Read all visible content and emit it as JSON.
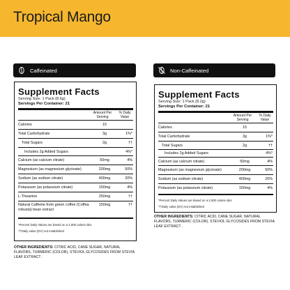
{
  "banner": {
    "title": "Tropical Mango",
    "color": "#f6b72f"
  },
  "variants": {
    "left": {
      "badge_icon": "coffee-bean-icon",
      "badge_label": "Caffeinated",
      "facts": {
        "title": "Supplement Facts",
        "serving_size": "Serving Size: 1 Pack (8.6g)",
        "servings_per_container": "Servings Per Container: 21",
        "col_amount": "Amount Per Serving",
        "col_dv": "% Daily Value",
        "rows": [
          {
            "name": "Calories",
            "amount": "15",
            "dv": ""
          },
          {
            "name": "Total Carbohydrate",
            "amount": "3g",
            "dv": "1%*"
          },
          {
            "name": "Total Sugars",
            "amount": "2g",
            "dv": "††"
          },
          {
            "name": "Includes 2g Added Sugars",
            "amount": "",
            "dv": "4%*"
          },
          {
            "name": "Calcium (as calcium citrate)",
            "amount": "50mg",
            "dv": "4%"
          },
          {
            "name": "Magnesium (as magnesium glycinate)",
            "amount": "200mg",
            "dv": "50%"
          },
          {
            "name": "Sodium (as sodium citrate)",
            "amount": "400mg",
            "dv": "20%"
          },
          {
            "name": "Potassium (as potassium citrate)",
            "amount": "150mg",
            "dv": "4%"
          },
          {
            "name": "L-Theanine",
            "amount": "250mg",
            "dv": "††"
          },
          {
            "name": "Natural Caffeine from green coffee (Coffea robusta) bean extract",
            "amount": "150mg",
            "dv": "††"
          }
        ],
        "footnote_1": "*Percent Daily Values are based on a 2,000 calorie diet.",
        "footnote_2": "††Daily value (DV) not established"
      },
      "other_ingredients_label": "OTHER INGREDIENTS:",
      "other_ingredients": "CITRIC ACID, CANE SUGAR, NATURAL FLAVORS, TURMERIC (COLOR), STEVIOL GLYCOSIDES FROM STEVIA LEAF EXTRACT ."
    },
    "right": {
      "badge_icon": "no-coffee-bean-icon",
      "badge_label": "Non-Caffeinated",
      "facts": {
        "title": "Supplement Facts",
        "serving_size": "Serving Size: 1 Pack (8.2g)",
        "servings_per_container": "Servings Per Container: 21",
        "col_amount": "Amount Per Serving",
        "col_dv": "% Daily Value",
        "rows": [
          {
            "name": "Calories",
            "amount": "15",
            "dv": ""
          },
          {
            "name": "Total Carbohydrate",
            "amount": "3g",
            "dv": "1%*"
          },
          {
            "name": "Total Sugars",
            "amount": "2g",
            "dv": "††"
          },
          {
            "name": "Includes 2g Added Sugars",
            "amount": "",
            "dv": "4%*"
          },
          {
            "name": "Calcium (as calcium citrate)",
            "amount": "50mg",
            "dv": "4%"
          },
          {
            "name": "Magnesium (as magnesium glycinate)",
            "amount": "200mg",
            "dv": "50%"
          },
          {
            "name": "Sodium (as sodium citrate)",
            "amount": "400mg",
            "dv": "20%"
          },
          {
            "name": "Potassium (as potassium citrate)",
            "amount": "150mg",
            "dv": "4%"
          }
        ],
        "footnote_1": "*Percent Daily Values are based on a 2,000 calorie diet.",
        "footnote_2": "††Daily value (DV) not established"
      },
      "other_ingredients_label": "OTHER INGREDIENTS:",
      "other_ingredients": "CITRIC ACID, CANE SUGAR, NATURAL FLAVORS, TURMERIC (COLOR), STEVIOL GLYCOSIDES FROM STEVIA LEAF EXTRACT ."
    }
  }
}
